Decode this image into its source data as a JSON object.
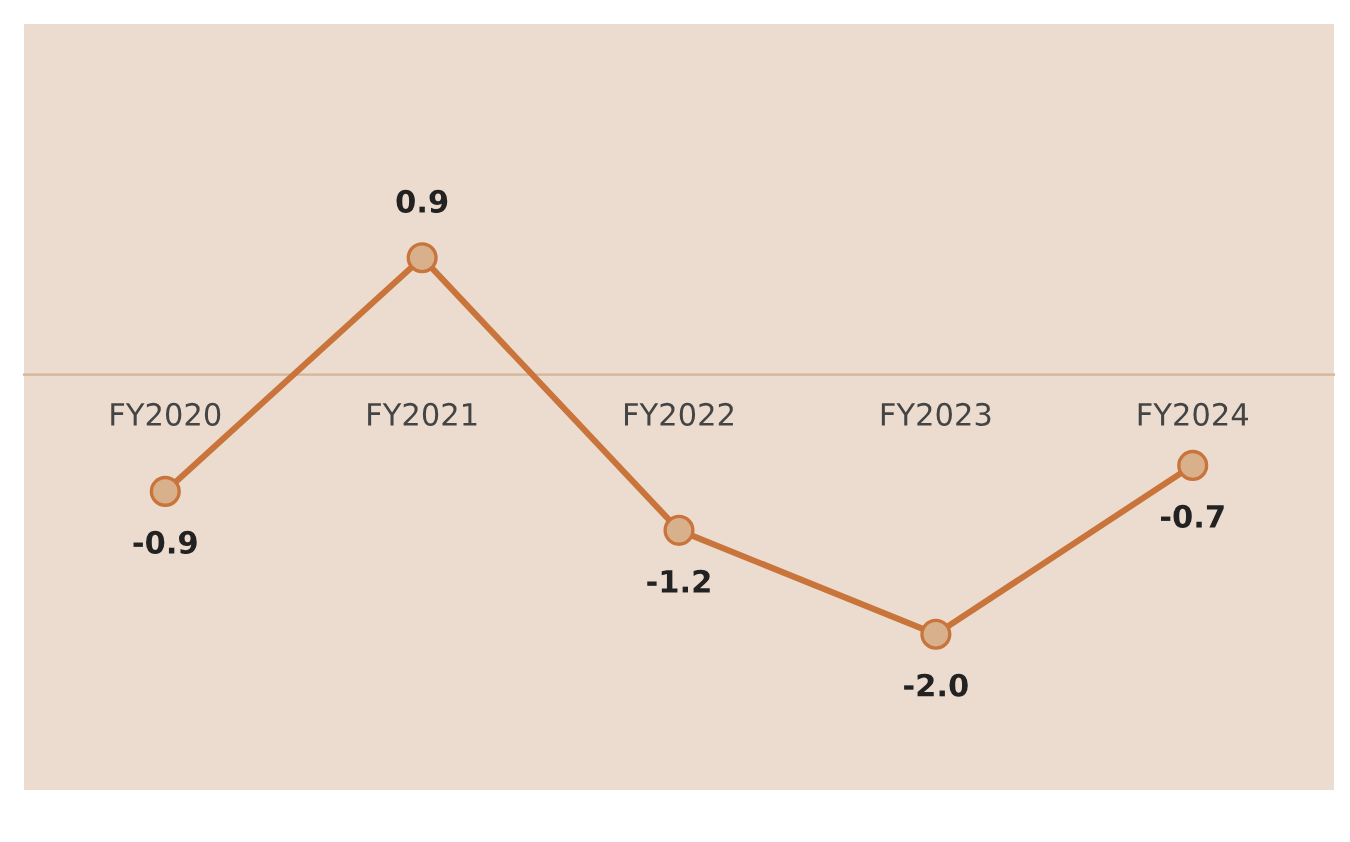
{
  "chart_data": {
    "type": "line",
    "categories": [
      "FY2020",
      "FY2021",
      "FY2022",
      "FY2023",
      "FY2024"
    ],
    "series": [
      {
        "color": "#c8743a",
        "values": [
          -0.9,
          0.9,
          -1.2,
          -2.0,
          -0.7
        ],
        "value_labels": [
          "-0.9",
          "0.9",
          "-1.2",
          "-2.0",
          "-0.7"
        ]
      }
    ],
    "marker": "circle",
    "line_style": "solid",
    "ylim": [
      -3.2,
      2.7
    ],
    "tick_labels": "x",
    "grid": false,
    "legend": false
  }
}
